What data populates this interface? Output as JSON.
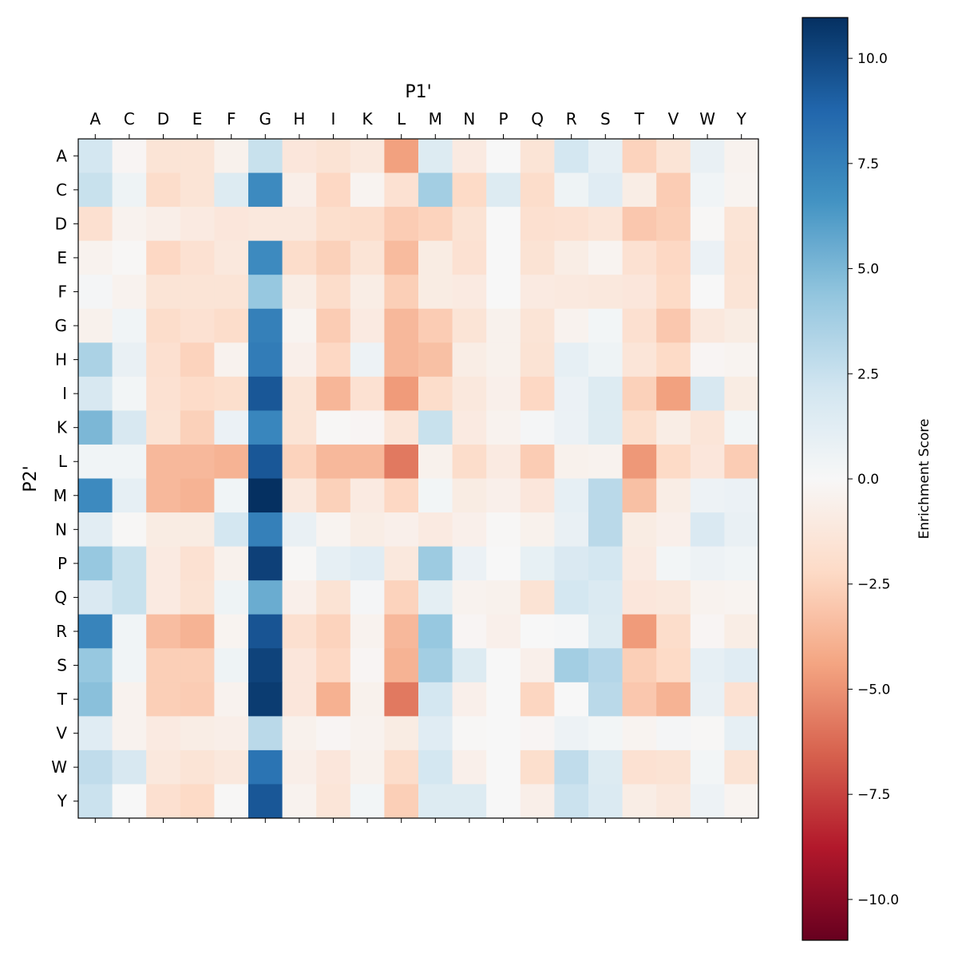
{
  "chart_data": {
    "type": "heatmap",
    "title": "",
    "xlabel": "P1'",
    "ylabel": "P2'",
    "x_categories": [
      "A",
      "C",
      "D",
      "E",
      "F",
      "G",
      "H",
      "I",
      "K",
      "L",
      "M",
      "N",
      "P",
      "Q",
      "R",
      "S",
      "T",
      "V",
      "W",
      "Y"
    ],
    "y_categories": [
      "A",
      "C",
      "D",
      "E",
      "F",
      "G",
      "H",
      "I",
      "K",
      "L",
      "M",
      "N",
      "P",
      "Q",
      "R",
      "S",
      "T",
      "V",
      "W",
      "Y"
    ],
    "x_axis_position": "top",
    "colormap": "RdBu",
    "colormap_stops": [
      "#67001f",
      "#b2182b",
      "#d6604d",
      "#f4a582",
      "#fddbc7",
      "#f7f7f7",
      "#d1e5f0",
      "#92c5de",
      "#4393c3",
      "#2166ac",
      "#053061"
    ],
    "vlim": [
      -10.97,
      10.97
    ],
    "colorbar": {
      "label": "Enrichment Score",
      "ticks": [
        10.0,
        7.5,
        5.0,
        2.5,
        0.0,
        -2.5,
        -5.0,
        -7.5,
        -10.0
      ],
      "tick_labels": [
        "10.0",
        "7.5",
        "5.0",
        "2.5",
        "0.0",
        "−2.5",
        "−5.0",
        "−7.5",
        "−10.0"
      ]
    },
    "values": [
      [
        2,
        -0.2,
        -1.5,
        -1.5,
        -0.5,
        2.5,
        -1.3,
        -1.6,
        -1.2,
        -4.5,
        1.5,
        -1,
        0,
        -1.5,
        2,
        1,
        -2.5,
        -1.5,
        0.8,
        -0.4
      ],
      [
        2.5,
        0.5,
        -2,
        -1.5,
        1.5,
        7,
        -0.7,
        -2.3,
        -0.3,
        -1.7,
        3.8,
        -2.2,
        1.5,
        -2,
        0.5,
        1.3,
        -0.8,
        -2.8,
        0.4,
        -0.3
      ],
      [
        -1.8,
        -0.4,
        -0.7,
        -1,
        -1.3,
        -1.2,
        -1.2,
        -1.9,
        -2,
        -2.8,
        -2.5,
        -1.6,
        0,
        -1.8,
        -1.7,
        -1.4,
        -3,
        -2.7,
        -0.1,
        -1.5
      ],
      [
        -0.4,
        -0.1,
        -2.3,
        -1.7,
        -1.2,
        7,
        -2,
        -2.6,
        -1.5,
        -3.5,
        -0.9,
        -1.7,
        0,
        -1.6,
        -0.8,
        -0.3,
        -1.7,
        -2.3,
        0.7,
        -1.6
      ],
      [
        0.2,
        -0.4,
        -1.5,
        -1.5,
        -1.5,
        4.2,
        -0.8,
        -2,
        -0.8,
        -2.7,
        -0.9,
        -1,
        0,
        -1,
        -1.1,
        -1.2,
        -1.3,
        -2.2,
        0,
        -1.5
      ],
      [
        -0.5,
        0.4,
        -2,
        -1.7,
        -2,
        7.5,
        -0.3,
        -2.8,
        -1,
        -3.6,
        -2.8,
        -1.5,
        -0.5,
        -1.5,
        -0.4,
        0.3,
        -1.8,
        -3,
        -1.2,
        -0.9
      ],
      [
        3.5,
        0.8,
        -1.8,
        -2.5,
        -0.4,
        7.7,
        -0.6,
        -2.3,
        0.6,
        -3.6,
        -3.3,
        -0.8,
        -0.5,
        -1.6,
        1,
        0.5,
        -1.4,
        -2.2,
        -0.2,
        -0.3
      ],
      [
        1.8,
        0.3,
        -1.7,
        -2.1,
        -1.9,
        9.4,
        -1.5,
        -3.7,
        -1.7,
        -4.7,
        -2,
        -1.2,
        -0.6,
        -2.3,
        0.7,
        1.5,
        -2.6,
        -4.5,
        1.8,
        -0.9
      ],
      [
        5,
        1.8,
        -1.6,
        -2.6,
        0.7,
        7.2,
        -1.5,
        -0.1,
        -0.2,
        -1.4,
        2.5,
        -1,
        -0.4,
        0.2,
        0.7,
        1.5,
        -1.9,
        -0.8,
        -1.4,
        0.3
      ],
      [
        0.4,
        0.4,
        -3.6,
        -3.6,
        -3.8,
        9.4,
        -2.5,
        -3.6,
        -3.6,
        -5.8,
        -0.5,
        -2,
        -1,
        -2.8,
        -0.5,
        -0.4,
        -4.8,
        -2.2,
        -1.3,
        -2.8
      ],
      [
        7,
        1,
        -3.6,
        -3.8,
        0.4,
        11,
        -1.2,
        -2.6,
        -1,
        -2.3,
        0.3,
        -0.9,
        -0.6,
        -1.3,
        1,
        3,
        -3.3,
        -0.8,
        0.6,
        0.7
      ],
      [
        1.2,
        -0.1,
        -0.9,
        -0.9,
        2,
        7.5,
        0.8,
        -0.3,
        -0.8,
        -0.6,
        -1,
        -0.6,
        -0.1,
        -0.5,
        0.8,
        3,
        -0.9,
        -0.6,
        1.7,
        0.8
      ],
      [
        4.2,
        2.5,
        -1,
        -1.7,
        -0.5,
        10.3,
        -0.1,
        1,
        1.3,
        -1.2,
        4,
        0.7,
        0,
        0.9,
        1.7,
        2,
        -1,
        0.3,
        0.6,
        0.4
      ],
      [
        1.7,
        2.5,
        -1,
        -1.6,
        0.5,
        5.5,
        -0.6,
        -1.6,
        0.2,
        -2.5,
        1.1,
        -0.4,
        -0.5,
        -1.6,
        2,
        1.6,
        -1.3,
        -1.2,
        -0.4,
        -0.3
      ],
      [
        7.3,
        0.4,
        -3.4,
        -3.8,
        -0.3,
        9.5,
        -1.8,
        -2.5,
        -0.4,
        -3.6,
        4.2,
        -0.2,
        -0.6,
        0,
        0.1,
        1.5,
        -4.7,
        -2,
        -0.2,
        -0.8
      ],
      [
        4.2,
        0.4,
        -2.7,
        -2.7,
        0.5,
        10.2,
        -1.3,
        -2.3,
        -0.2,
        -3.8,
        3.8,
        1.5,
        0,
        -0.6,
        3.8,
        3.2,
        -2.7,
        -2.2,
        1,
        1.3
      ],
      [
        4.6,
        -0.4,
        -2.7,
        -2.8,
        -0.4,
        10.5,
        -1.3,
        -3.9,
        -0.5,
        -5.8,
        2,
        -0.6,
        0,
        -2.4,
        0,
        3,
        -3,
        -3.8,
        0.8,
        -1.7
      ],
      [
        1.3,
        -0.4,
        -1,
        -0.8,
        -0.7,
        3,
        -0.5,
        -0.2,
        -0.4,
        -0.9,
        1.3,
        -0.1,
        0,
        -0.2,
        0.6,
        0.3,
        -0.3,
        0.2,
        -0.1,
        1
      ],
      [
        2.8,
        1.8,
        -1.2,
        -1.5,
        -1.2,
        8.1,
        -0.7,
        -1.3,
        -0.5,
        -2,
        2,
        -0.6,
        0,
        -1.9,
        2.8,
        1.5,
        -1.7,
        -1.6,
        0.3,
        -1.6
      ],
      [
        2.4,
        0,
        -1.8,
        -2.2,
        -0.1,
        9.4,
        -0.4,
        -1.4,
        0.3,
        -2.7,
        1.5,
        1.5,
        0,
        -0.7,
        2.4,
        1.6,
        -0.8,
        -1.2,
        0.6,
        -0.3
      ]
    ]
  }
}
